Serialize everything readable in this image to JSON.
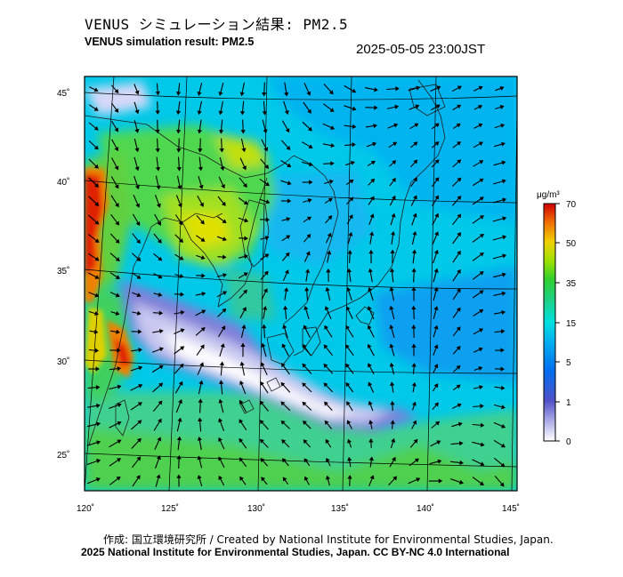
{
  "header": {
    "title_jp": "VENUS シミュレーション結果: PM2.5",
    "title_en": "VENUS simulation result: PM2.5",
    "timestamp": "2025-05-05 23:00JST"
  },
  "map": {
    "lon_labels": [
      "120˚",
      "125˚",
      "130˚",
      "135˚",
      "140˚",
      "145˚"
    ],
    "lat_labels": [
      "45˚",
      "40˚",
      "35˚",
      "30˚",
      "25˚"
    ],
    "lon_range": [
      120,
      145
    ],
    "lat_range": [
      23,
      46
    ]
  },
  "legend": {
    "unit": "μg/m³",
    "ticks": [
      "70",
      "50",
      "35",
      "15",
      "5",
      "1",
      "0"
    ],
    "colors": {
      "0": "#ffffff",
      "1": "#6060d0",
      "5": "#0080ff",
      "15": "#00e0e0",
      "35": "#30d030",
      "50": "#e8e000",
      "70": "#d00000"
    }
  },
  "footer": {
    "credit_line1": "作成: 国立環境研究所 / Created by National Institute for Environmental Studies, Japan.",
    "credit_line2": "2025 National Institute for Environmental Studies, Japan. CC BY-NC 4.0 International"
  }
}
